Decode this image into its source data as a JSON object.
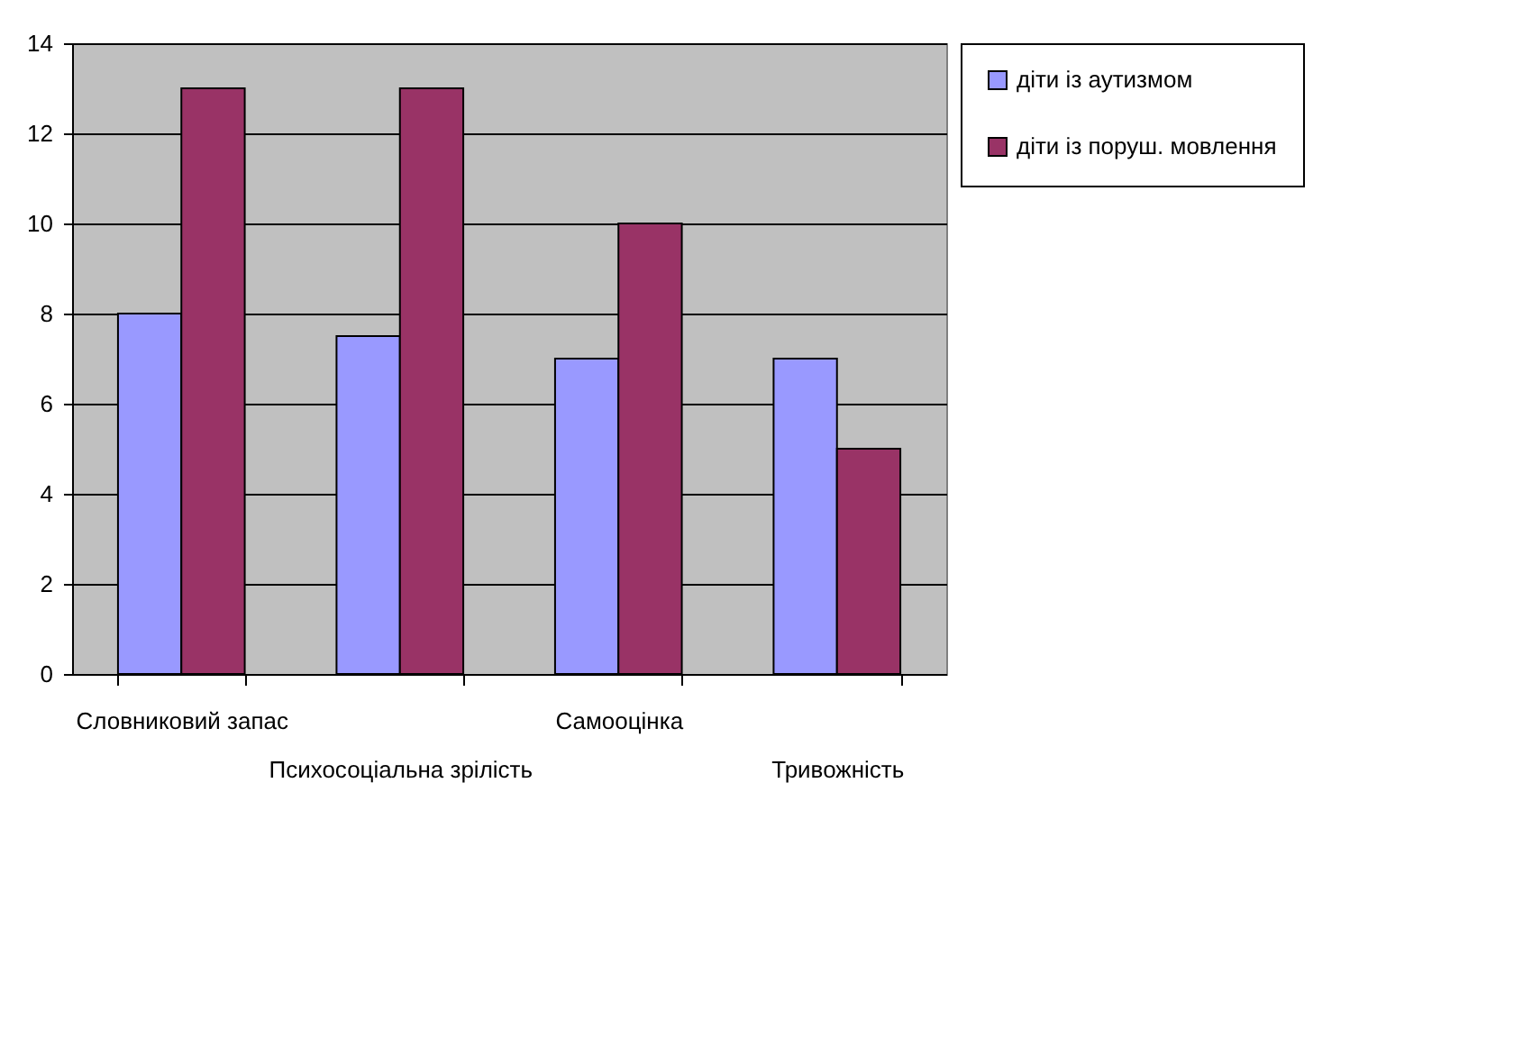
{
  "chart_data": {
    "type": "bar",
    "categories": [
      "Словниковий запас",
      "Психосоціальна зрілість",
      "Самооцінка",
      "Тривожність"
    ],
    "series": [
      {
        "name": "діти із аутизмом",
        "color": "#9999ff",
        "values": [
          8,
          7.5,
          7,
          7
        ]
      },
      {
        "name": "діти із поруш. мовлення",
        "color": "#993366",
        "values": [
          13,
          13,
          10,
          5
        ]
      }
    ],
    "ylim": [
      0,
      14
    ],
    "yticks": [
      0,
      2,
      4,
      6,
      8,
      10,
      12,
      14
    ],
    "grid": "y",
    "legend": "right"
  }
}
